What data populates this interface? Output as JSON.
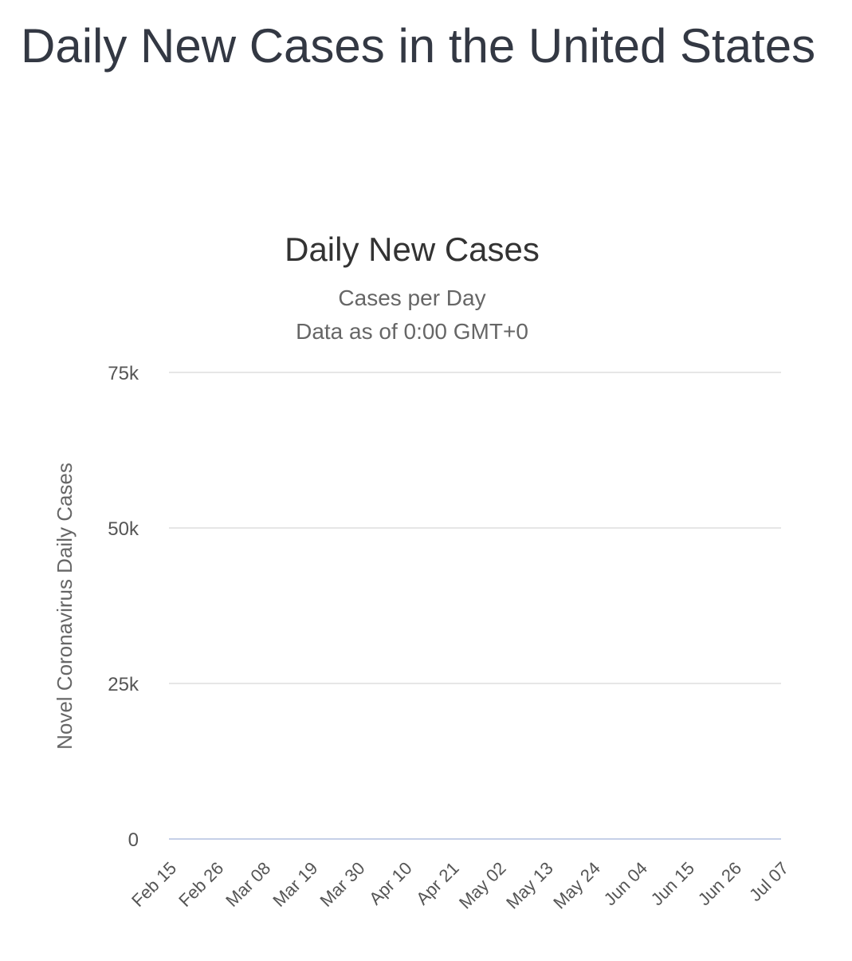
{
  "page": {
    "heading": "Daily New Cases in the United States"
  },
  "colors": {
    "bar": "#999999",
    "grid": "#e6e6e6",
    "baseline": "#c6d0e8",
    "heading": "#333843"
  },
  "chart_data": {
    "type": "bar",
    "title": "Daily New Cases",
    "subtitle": "Cases per Day",
    "subtitle2": "Data as of 0:00 GMT+0",
    "xlabel": "",
    "ylabel": "Novel Coronavirus Daily Cases",
    "ylim": [
      0,
      75000
    ],
    "yticks": [
      0,
      25000,
      50000,
      75000
    ],
    "ytick_labels": [
      "0",
      "25k",
      "50k",
      "75k"
    ],
    "grid": true,
    "legend": "none",
    "x_start": "Feb 15",
    "x_tick_labels": [
      "Feb 15",
      "Feb 26",
      "Mar 08",
      "Mar 19",
      "Mar 30",
      "Apr 10",
      "Apr 21",
      "May 02",
      "May 13",
      "May 24",
      "Jun 04",
      "Jun 15",
      "Jun 26",
      "Jul 07"
    ],
    "series": [
      {
        "values": [
          0,
          0,
          0,
          0,
          0,
          0,
          0,
          0,
          0,
          0,
          0,
          0,
          0,
          0,
          0,
          0,
          0,
          0,
          0,
          0,
          0,
          0,
          0,
          0,
          0,
          0,
          0,
          0,
          0,
          0,
          0,
          0,
          0,
          0,
          0,
          0,
          0,
          0,
          0,
          0,
          0,
          0,
          0,
          0,
          0,
          0,
          0,
          0,
          0,
          0,
          0,
          0,
          0,
          0,
          0,
          0,
          0,
          0,
          0,
          0,
          0,
          0,
          0,
          0,
          0,
          0,
          0,
          0,
          0,
          0,
          0,
          0,
          0,
          0,
          0,
          0,
          0,
          0,
          0,
          0,
          0,
          0,
          0,
          0,
          0,
          0,
          0,
          0,
          0,
          0,
          0,
          0,
          0,
          0,
          0,
          0,
          0,
          0,
          0,
          0,
          0,
          0,
          0,
          0,
          0,
          0,
          0,
          0,
          0,
          0,
          0,
          0,
          0,
          0,
          0,
          0,
          0,
          0,
          0,
          0,
          0,
          0,
          0,
          0,
          0,
          0,
          0,
          0,
          0,
          0,
          0,
          0,
          0,
          0,
          0,
          0,
          0,
          0,
          0,
          0,
          0,
          0,
          0
        ]
      }
    ]
  }
}
